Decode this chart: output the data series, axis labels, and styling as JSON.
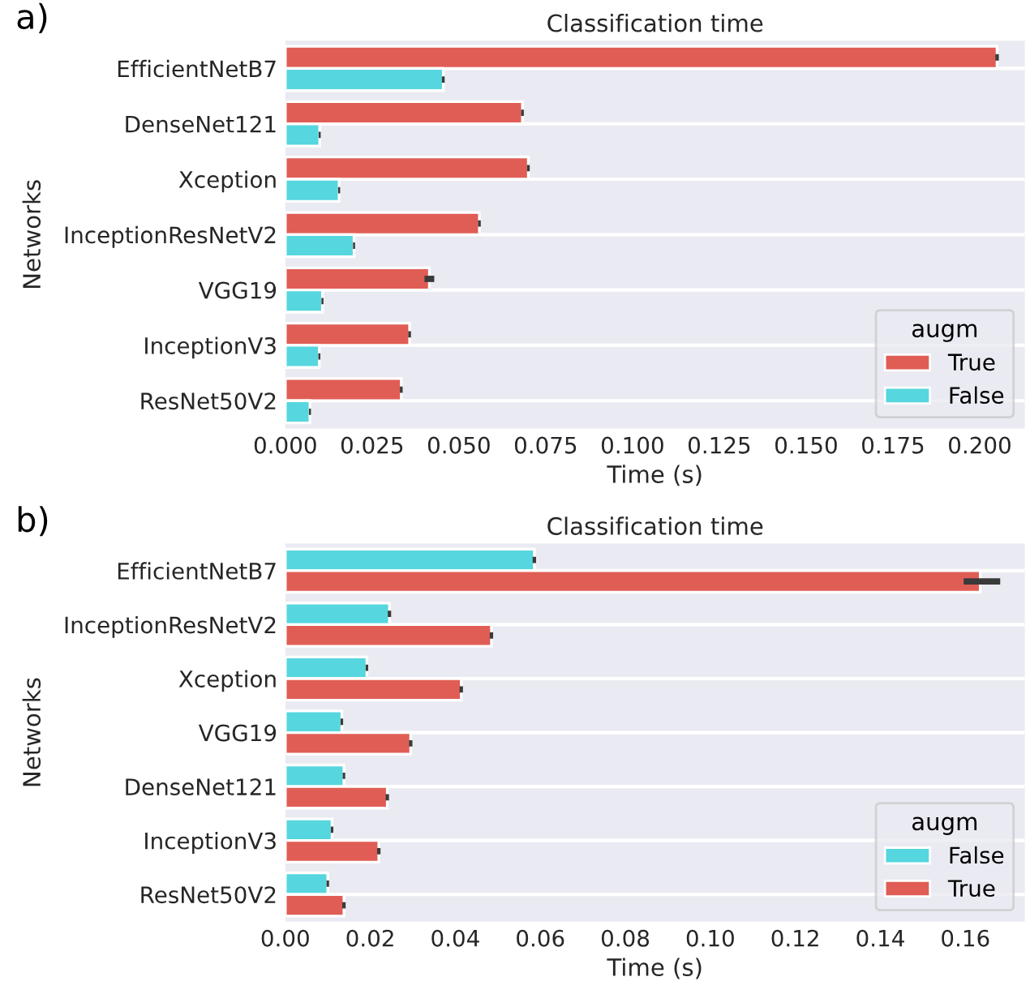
{
  "chart_data": [
    {
      "type": "bar",
      "orientation": "horizontal",
      "title": "Classification time",
      "xlabel": "Time (s)",
      "ylabel": "Networks",
      "legend_title": "augm",
      "legend": "bottom right",
      "grid": "y",
      "categories": [
        "EfficientNetB7",
        "DenseNet121",
        "Xception",
        "InceptionResNetV2",
        "VGG19",
        "InceptionV3",
        "ResNet50V2"
      ],
      "series": [
        {
          "name": "True",
          "color": "#e05d55",
          "values": [
            0.205,
            0.0683,
            0.07,
            0.0559,
            0.0415,
            0.0358,
            0.0334
          ],
          "errors": [
            0.0005,
            0.0004,
            0.0004,
            0.0004,
            0.0014,
            0.0004,
            0.0004
          ]
        },
        {
          "name": "False",
          "color": "#56d6de",
          "values": [
            0.0455,
            0.0099,
            0.0155,
            0.0198,
            0.0107,
            0.0098,
            0.0071
          ],
          "errors": [
            0.0004,
            0.0003,
            0.0003,
            0.0003,
            0.0003,
            0.0003,
            0.0003
          ]
        }
      ],
      "xlim": [
        0,
        0.213
      ],
      "xticks": [
        {
          "value": 0,
          "label": "0.000"
        },
        {
          "value": 0.025,
          "label": "0.025"
        },
        {
          "value": 0.05,
          "label": "0.050"
        },
        {
          "value": 0.075,
          "label": "0.075"
        },
        {
          "value": 0.1,
          "label": "0.100"
        },
        {
          "value": 0.125,
          "label": "0.125"
        },
        {
          "value": 0.15,
          "label": "0.150"
        },
        {
          "value": 0.175,
          "label": "0.175"
        },
        {
          "value": 0.2,
          "label": "0.200"
        }
      ],
      "annotations": [
        "a)"
      ]
    },
    {
      "type": "bar",
      "orientation": "horizontal",
      "title": "Classification time",
      "xlabel": "Time (s)",
      "ylabel": "Networks",
      "legend_title": "augm",
      "legend": "bottom right",
      "grid": "y",
      "categories": [
        "EfficientNetB7",
        "InceptionResNetV2",
        "Xception",
        "VGG19",
        "DenseNet121",
        "InceptionV3",
        "ResNet50V2"
      ],
      "series": [
        {
          "name": "False",
          "color": "#56d6de",
          "values": [
            0.0586,
            0.0245,
            0.0192,
            0.0133,
            0.0138,
            0.011,
            0.01
          ],
          "errors": [
            0.0004,
            0.0004,
            0.0003,
            0.0003,
            0.0003,
            0.0003,
            0.0003
          ]
        },
        {
          "name": "True",
          "color": "#e05d55",
          "values": [
            0.1635,
            0.0485,
            0.0414,
            0.0295,
            0.024,
            0.022,
            0.0138
          ],
          "errors": [
            [
              0.1596,
              0.1682
            ],
            0.0004,
            0.0004,
            0.0004,
            0.0004,
            0.0004,
            0.0004
          ]
        }
      ],
      "xlim": [
        0,
        0.174
      ],
      "xticks": [
        {
          "value": 0,
          "label": "0.00"
        },
        {
          "value": 0.02,
          "label": "0.02"
        },
        {
          "value": 0.04,
          "label": "0.04"
        },
        {
          "value": 0.06,
          "label": "0.06"
        },
        {
          "value": 0.08,
          "label": "0.08"
        },
        {
          "value": 0.1,
          "label": "0.10"
        },
        {
          "value": 0.12,
          "label": "0.12"
        },
        {
          "value": 0.14,
          "label": "0.14"
        },
        {
          "value": 0.16,
          "label": "0.16"
        }
      ],
      "annotations": [
        "b)"
      ]
    }
  ]
}
